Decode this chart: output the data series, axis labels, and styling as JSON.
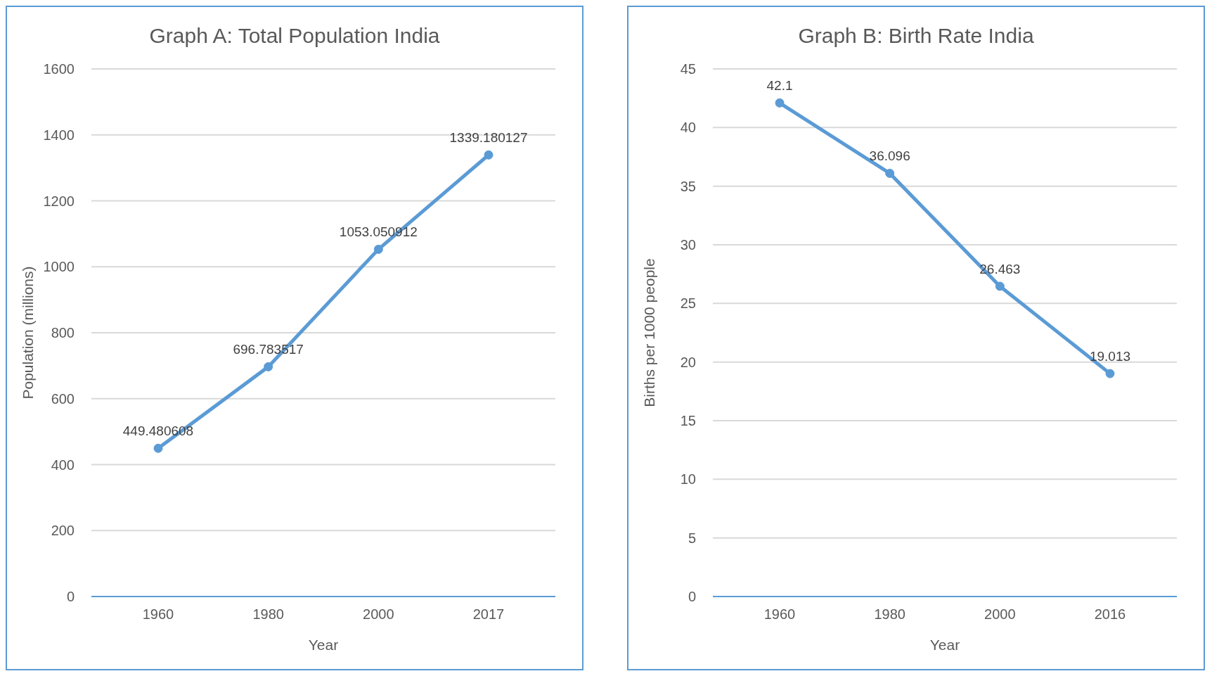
{
  "chart_data": [
    {
      "type": "line",
      "title": "Graph A: Total Population India",
      "xlabel": "Year",
      "ylabel": "Population (millions)",
      "categories": [
        "1960",
        "1980",
        "2000",
        "2017"
      ],
      "series": [
        {
          "color": "#5b9bd5",
          "values": [
            449.480608,
            696.783517,
            1053.050912,
            1339.180127
          ]
        }
      ],
      "ylim": [
        0,
        1600
      ],
      "yticks": [
        0,
        200,
        400,
        600,
        800,
        1000,
        1200,
        1400,
        1600
      ],
      "grid": "y",
      "marker": "circle",
      "line_style": "solid",
      "data_labels": true
    },
    {
      "type": "line",
      "title": "Graph B: Birth Rate India",
      "xlabel": "Year",
      "ylabel": "Births per 1000 people",
      "categories": [
        "1960",
        "1980",
        "2000",
        "2016"
      ],
      "series": [
        {
          "color": "#5b9bd5",
          "values": [
            42.1,
            36.096,
            26.463,
            19.013
          ]
        }
      ],
      "ylim": [
        0,
        45
      ],
      "yticks": [
        0,
        5,
        10,
        15,
        20,
        25,
        30,
        35,
        40,
        45
      ],
      "grid": "y",
      "marker": "circle",
      "line_style": "solid",
      "data_labels": true
    }
  ]
}
